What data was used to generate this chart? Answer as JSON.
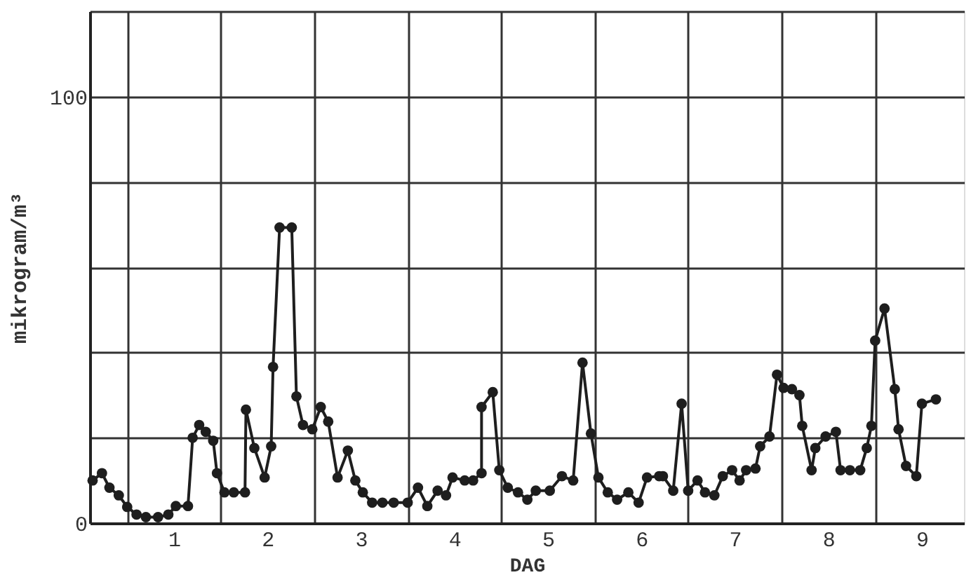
{
  "chart_data": {
    "type": "line",
    "xlabel": "DAG",
    "ylabel": "mikrogram/m³",
    "x": [
      0.13,
      0.23,
      0.31,
      0.41,
      0.5,
      0.6,
      0.7,
      0.83,
      0.94,
      1.02,
      1.15,
      1.2,
      1.27,
      1.34,
      1.42,
      1.46,
      1.54,
      1.64,
      1.76,
      1.77,
      1.86,
      1.97,
      2.04,
      2.06,
      2.13,
      2.26,
      2.31,
      2.38,
      2.48,
      2.57,
      2.65,
      2.75,
      2.86,
      2.94,
      3.02,
      3.12,
      3.23,
      3.35,
      3.5,
      3.61,
      3.71,
      3.82,
      3.91,
      3.98,
      4.11,
      4.2,
      4.29,
      4.29,
      4.41,
      4.48,
      4.57,
      4.68,
      4.78,
      4.87,
      5.02,
      5.15,
      5.27,
      5.37,
      5.46,
      5.54,
      5.64,
      5.74,
      5.86,
      5.97,
      6.06,
      6.19,
      6.23,
      6.34,
      6.43,
      6.5,
      6.6,
      6.68,
      6.78,
      6.87,
      6.97,
      7.05,
      7.12,
      7.22,
      7.27,
      7.37,
      7.45,
      7.52,
      7.61,
      7.69,
      7.72,
      7.82,
      7.86,
      7.97,
      8.08,
      8.13,
      8.23,
      8.34,
      8.41,
      8.46,
      8.5,
      8.6,
      8.71,
      8.75,
      8.83,
      8.94,
      9.0,
      9.15
    ],
    "series": [
      {
        "color": "#1e1e1e",
        "values": [
          10,
          11.7,
          8.3,
          6.5,
          3.8,
          2,
          1.4,
          1.4,
          2,
          4,
          4,
          20,
          23,
          21.4,
          19.3,
          11.7,
          7.2,
          7.2,
          7.2,
          26.6,
          17.6,
          10.7,
          18,
          36.6,
          69.3,
          69.3,
          29.7,
          23,
          22,
          27.2,
          23.8,
          10.7,
          17,
          10,
          7.2,
          4.8,
          4.8,
          4.8,
          4.8,
          8.3,
          4,
          7.6,
          6.5,
          10.7,
          10,
          10,
          11.7,
          27.2,
          30.7,
          12.4,
          8.3,
          7.2,
          5.5,
          7.6,
          7.6,
          11,
          10,
          37.6,
          21,
          10.7,
          7.2,
          5.5,
          7.2,
          4.8,
          10.7,
          11,
          11,
          7.6,
          28,
          7.6,
          10,
          7.2,
          6.5,
          11,
          12.4,
          10,
          12.4,
          12.8,
          18,
          20.3,
          34.8,
          31.7,
          31.4,
          30,
          22.8,
          12.4,
          17.6,
          20.3,
          21.4,
          12.4,
          12.4,
          12.4,
          17.6,
          22.8,
          42.8,
          50.3,
          31.4,
          22,
          13.4,
          11,
          28,
          29
        ]
      }
    ],
    "xlim": [
      0.1,
      9.45
    ],
    "xticks": [
      {
        "value": 0.5,
        "label": null
      },
      1,
      {
        "value": 1.5,
        "label": null
      },
      2,
      {
        "value": 2.5,
        "label": null
      },
      3,
      {
        "value": 3.5,
        "label": null
      },
      4,
      {
        "value": 4.5,
        "label": null
      },
      5,
      {
        "value": 5.5,
        "label": null
      },
      6,
      {
        "value": 6.5,
        "label": null
      },
      7,
      {
        "value": 7.5,
        "label": null
      },
      8,
      {
        "value": 8.5,
        "label": null
      },
      9
    ],
    "ylim": [
      0,
      120
    ],
    "yticks": [
      0,
      {
        "value": 20,
        "label": null
      },
      {
        "value": 40,
        "label": null
      },
      {
        "value": 60,
        "label": null
      },
      {
        "value": 80,
        "label": null
      },
      100,
      {
        "value": 120,
        "label": null
      }
    ],
    "grid": true,
    "marker": "circle",
    "line_style": "solid"
  }
}
